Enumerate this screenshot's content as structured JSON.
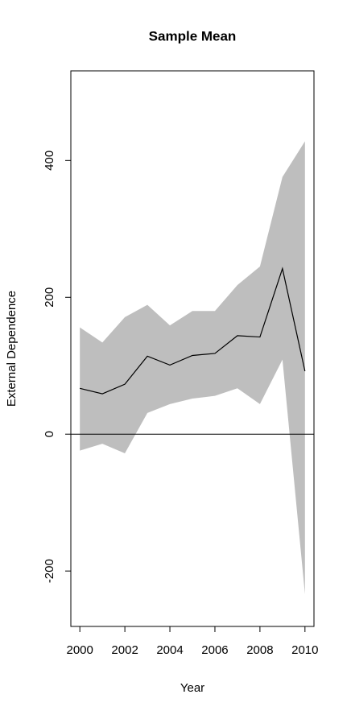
{
  "chart_data": {
    "type": "line",
    "title": "Sample Mean",
    "x_label": "Year",
    "y_label": "External Dependence",
    "x": [
      2000,
      2001,
      2002,
      2003,
      2004,
      2005,
      2006,
      2007,
      2008,
      2009,
      2010
    ],
    "values": [
      67,
      59,
      73,
      114,
      101,
      115,
      118,
      144,
      142,
      242,
      92
    ],
    "color": "#000000",
    "band": {
      "upper": [
        156,
        134,
        171,
        189,
        159,
        180,
        180,
        218,
        245,
        376,
        428
      ],
      "lower": [
        -24,
        -14,
        -28,
        31,
        44,
        52,
        56,
        67,
        44,
        109,
        -234
      ],
      "color": "#bebebe"
    },
    "hline": 0,
    "xlim": [
      1999.6,
      2010.4
    ],
    "ylim": [
      -281,
      531
    ],
    "xticks": [
      2000,
      2002,
      2004,
      2006,
      2008,
      2010
    ],
    "yticks": [
      -200,
      0,
      200,
      400
    ]
  }
}
